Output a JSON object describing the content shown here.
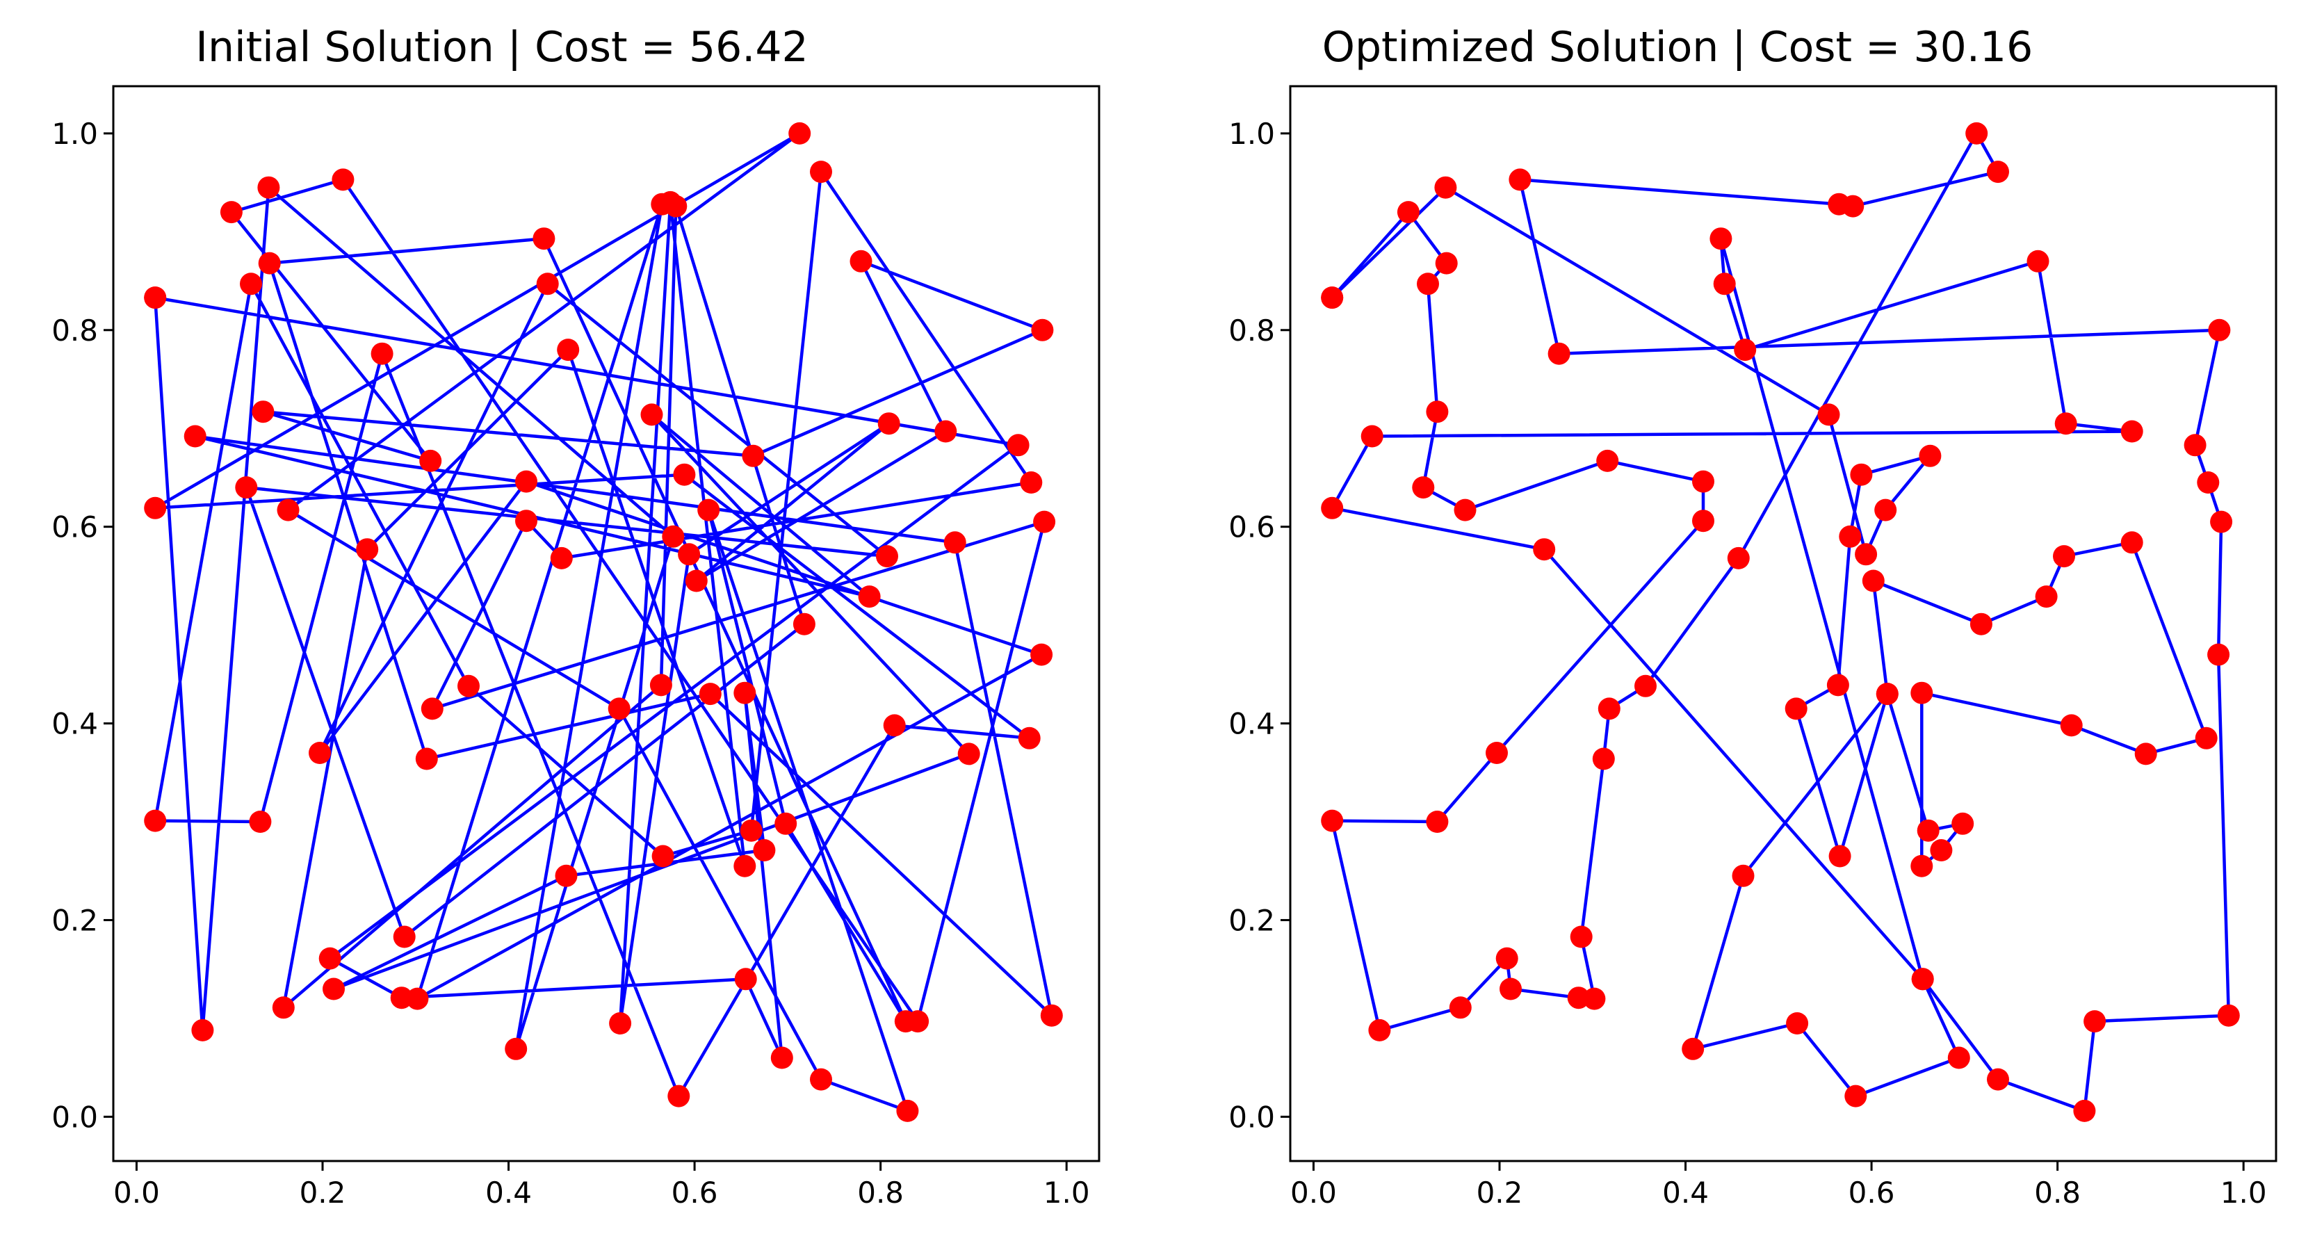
{
  "colors": {
    "route": "#0000ff",
    "city": "#ff0000",
    "axes": "#000000",
    "background": "#ffffff"
  },
  "chart_data": [
    {
      "type": "line",
      "title": "Initial Solution | Cost = 56.42",
      "xlim": [
        -0.025,
        1.035
      ],
      "ylim": [
        -0.045,
        1.048
      ],
      "xticks": [
        "0.0",
        "0.2",
        "0.4",
        "0.6",
        "0.8",
        "1.0"
      ],
      "yticks": [
        "0.0",
        "0.2",
        "0.4",
        "0.6",
        "0.8",
        "1.0"
      ],
      "grid": false,
      "marker": "o",
      "points": [
        [
          0.02,
          0.833
        ],
        [
          0.071,
          0.088
        ],
        [
          0.142,
          0.945
        ],
        [
          0.577,
          0.59
        ],
        [
          0.408,
          0.069
        ],
        [
          0.565,
          0.928
        ],
        [
          0.302,
          0.12
        ],
        [
          0.973,
          0.47
        ],
        [
          0.419,
          0.646
        ],
        [
          0.197,
          0.37
        ],
        [
          0.442,
          0.847
        ],
        [
          0.807,
          0.57
        ],
        [
          0.118,
          0.64
        ],
        [
          0.288,
          0.183
        ],
        [
          0.718,
          0.501
        ],
        [
          0.58,
          0.926
        ],
        [
          0.564,
          0.439
        ],
        [
          0.158,
          0.111
        ],
        [
          0.248,
          0.577
        ],
        [
          0.464,
          0.78
        ],
        [
          0.654,
          0.255
        ],
        [
          0.574,
          0.93
        ],
        [
          0.52,
          0.095
        ],
        [
          0.594,
          0.572
        ],
        [
          0.809,
          0.705
        ],
        [
          0.602,
          0.545
        ],
        [
          0.87,
          0.697
        ],
        [
          0.779,
          0.87
        ],
        [
          0.974,
          0.8
        ],
        [
          0.663,
          0.672
        ],
        [
          0.136,
          0.717
        ],
        [
          0.316,
          0.667
        ],
        [
          0.102,
          0.92
        ],
        [
          0.222,
          0.953
        ],
        [
          0.84,
          0.097
        ],
        [
          0.976,
          0.605
        ],
        [
          0.318,
          0.415
        ],
        [
          0.419,
          0.606
        ],
        [
          0.457,
          0.568
        ],
        [
          0.962,
          0.645
        ],
        [
          0.736,
          0.961
        ],
        [
          0.661,
          0.291
        ],
        [
          0.566,
          0.265
        ],
        [
          0.357,
          0.438
        ],
        [
          0.123,
          0.847
        ],
        [
          0.02,
          0.301
        ],
        [
          0.133,
          0.3
        ],
        [
          0.264,
          0.776
        ],
        [
          0.583,
          0.021
        ],
        [
          0.815,
          0.398
        ],
        [
          0.96,
          0.385
        ],
        [
          0.589,
          0.653
        ],
        [
          0.02,
          0.619
        ],
        [
          0.713,
          1.0
        ],
        [
          0.163,
          0.617
        ],
        [
          0.519,
          0.415
        ],
        [
          0.736,
          0.038
        ],
        [
          0.829,
          0.006
        ],
        [
          0.615,
          0.617
        ],
        [
          0.698,
          0.298
        ],
        [
          0.827,
          0.097
        ],
        [
          0.438,
          0.893
        ],
        [
          0.143,
          0.868
        ],
        [
          0.312,
          0.364
        ],
        [
          0.617,
          0.43
        ],
        [
          0.984,
          0.103
        ],
        [
          0.88,
          0.584
        ],
        [
          0.063,
          0.692
        ],
        [
          0.788,
          0.529
        ],
        [
          0.554,
          0.714
        ],
        [
          0.895,
          0.369
        ],
        [
          0.212,
          0.13
        ],
        [
          0.462,
          0.245
        ],
        [
          0.675,
          0.271
        ],
        [
          0.654,
          0.431
        ],
        [
          0.694,
          0.06
        ],
        [
          0.655,
          0.14
        ],
        [
          0.285,
          0.121
        ],
        [
          0.208,
          0.161
        ],
        [
          0.948,
          0.683
        ],
        [
          0.02,
          0.833
        ]
      ]
    },
    {
      "type": "line",
      "title": "Optimized Solution | Cost = 30.16",
      "xlim": [
        -0.025,
        1.035
      ],
      "ylim": [
        -0.045,
        1.048
      ],
      "xticks": [
        "0.0",
        "0.2",
        "0.4",
        "0.6",
        "0.8",
        "1.0"
      ],
      "yticks": [
        "0.0",
        "0.2",
        "0.4",
        "0.6",
        "0.8",
        "1.0"
      ],
      "grid": false,
      "marker": "o",
      "points": [
        [
          0.02,
          0.833
        ],
        [
          0.102,
          0.92
        ],
        [
          0.143,
          0.868
        ],
        [
          0.123,
          0.847
        ],
        [
          0.133,
          0.717
        ],
        [
          0.118,
          0.64
        ],
        [
          0.163,
          0.617
        ],
        [
          0.316,
          0.667
        ],
        [
          0.419,
          0.646
        ],
        [
          0.419,
          0.606
        ],
        [
          0.197,
          0.37
        ],
        [
          0.133,
          0.3
        ],
        [
          0.02,
          0.301
        ],
        [
          0.071,
          0.088
        ],
        [
          0.158,
          0.111
        ],
        [
          0.208,
          0.161
        ],
        [
          0.212,
          0.13
        ],
        [
          0.285,
          0.121
        ],
        [
          0.302,
          0.12
        ],
        [
          0.288,
          0.183
        ],
        [
          0.312,
          0.364
        ],
        [
          0.318,
          0.415
        ],
        [
          0.357,
          0.438
        ],
        [
          0.457,
          0.568
        ],
        [
          0.713,
          1.0
        ],
        [
          0.736,
          0.961
        ],
        [
          0.58,
          0.926
        ],
        [
          0.565,
          0.928
        ],
        [
          0.222,
          0.953
        ],
        [
          0.264,
          0.776
        ],
        [
          0.974,
          0.8
        ],
        [
          0.948,
          0.683
        ],
        [
          0.962,
          0.645
        ],
        [
          0.976,
          0.605
        ],
        [
          0.973,
          0.47
        ],
        [
          0.984,
          0.103
        ],
        [
          0.84,
          0.097
        ],
        [
          0.829,
          0.006
        ],
        [
          0.736,
          0.038
        ],
        [
          0.655,
          0.14
        ],
        [
          0.438,
          0.893
        ],
        [
          0.442,
          0.847
        ],
        [
          0.464,
          0.78
        ],
        [
          0.779,
          0.87
        ],
        [
          0.809,
          0.705
        ],
        [
          0.88,
          0.697
        ],
        [
          0.063,
          0.692
        ],
        [
          0.02,
          0.619
        ],
        [
          0.248,
          0.577
        ],
        [
          0.655,
          0.14
        ],
        [
          0.694,
          0.06
        ],
        [
          0.583,
          0.021
        ],
        [
          0.52,
          0.095
        ],
        [
          0.408,
          0.069
        ],
        [
          0.462,
          0.245
        ],
        [
          0.617,
          0.43
        ],
        [
          0.602,
          0.545
        ],
        [
          0.718,
          0.501
        ],
        [
          0.788,
          0.529
        ],
        [
          0.807,
          0.57
        ],
        [
          0.88,
          0.584
        ],
        [
          0.96,
          0.385
        ],
        [
          0.895,
          0.369
        ],
        [
          0.815,
          0.398
        ],
        [
          0.654,
          0.431
        ],
        [
          0.654,
          0.255
        ],
        [
          0.675,
          0.271
        ],
        [
          0.698,
          0.298
        ],
        [
          0.661,
          0.291
        ],
        [
          0.617,
          0.43
        ],
        [
          0.566,
          0.265
        ],
        [
          0.519,
          0.415
        ],
        [
          0.564,
          0.439
        ],
        [
          0.577,
          0.59
        ],
        [
          0.589,
          0.653
        ],
        [
          0.663,
          0.672
        ],
        [
          0.615,
          0.617
        ],
        [
          0.594,
          0.572
        ],
        [
          0.554,
          0.714
        ],
        [
          0.142,
          0.945
        ],
        [
          0.02,
          0.833
        ]
      ]
    }
  ]
}
